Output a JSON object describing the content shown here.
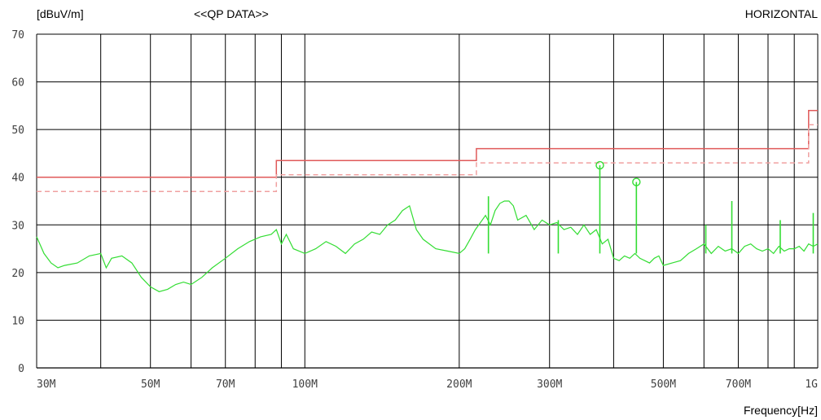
{
  "chart_data": {
    "type": "line",
    "title": "<<QP DATA>>",
    "ylabel": "[dBuV/m]",
    "xlabel": "Frequency[Hz]",
    "polarization": "HORIZONTAL",
    "xscale": "log",
    "xlim": [
      30,
      1000
    ],
    "ylim": [
      0,
      70
    ],
    "grid": true,
    "yticks": [
      0,
      10,
      20,
      30,
      40,
      50,
      60,
      70
    ],
    "xticks": [
      {
        "value": 30,
        "label": "30M"
      },
      {
        "value": 40,
        "label": ""
      },
      {
        "value": 50,
        "label": "50M"
      },
      {
        "value": 60,
        "label": ""
      },
      {
        "value": 70,
        "label": "70M"
      },
      {
        "value": 80,
        "label": ""
      },
      {
        "value": 90,
        "label": ""
      },
      {
        "value": 100,
        "label": "100M"
      },
      {
        "value": 200,
        "label": "200M"
      },
      {
        "value": 300,
        "label": "300M"
      },
      {
        "value": 400,
        "label": ""
      },
      {
        "value": 500,
        "label": "500M"
      },
      {
        "value": 600,
        "label": ""
      },
      {
        "value": 700,
        "label": "700M"
      },
      {
        "value": 800,
        "label": ""
      },
      {
        "value": 900,
        "label": ""
      },
      {
        "value": 1000,
        "label": "1G"
      }
    ],
    "colors": {
      "limit": "#e05a5a",
      "margin": "#f0a0a0",
      "measurement": "#33dd33",
      "grid": "#000000",
      "polarization": "#33dd33"
    },
    "series": [
      {
        "kind": "limit",
        "x": [
          30,
          88,
          88,
          216,
          216,
          960,
          960,
          1000
        ],
        "y": [
          40,
          40,
          43.5,
          43.5,
          46,
          46,
          54,
          54
        ]
      },
      {
        "kind": "margin",
        "x": [
          30,
          88,
          88,
          216,
          216,
          960,
          960,
          1000
        ],
        "y": [
          37,
          37,
          40.5,
          40.5,
          43,
          43,
          51,
          51
        ]
      },
      {
        "kind": "measurement",
        "x": [
          30,
          31,
          32,
          33,
          34,
          36,
          38,
          40,
          41,
          42,
          44,
          46,
          48,
          50,
          52,
          54,
          56,
          58,
          60,
          63,
          66,
          70,
          74,
          78,
          82,
          86,
          88,
          90,
          92,
          95,
          100,
          105,
          110,
          115,
          120,
          125,
          130,
          135,
          140,
          145,
          150,
          155,
          160,
          165,
          170,
          180,
          190,
          200,
          205,
          210,
          215,
          220,
          225,
          230,
          235,
          240,
          245,
          250,
          255,
          260,
          270,
          280,
          290,
          300,
          310,
          320,
          330,
          340,
          350,
          360,
          370,
          380,
          390,
          400,
          410,
          420,
          430,
          440,
          450,
          460,
          470,
          480,
          490,
          500,
          520,
          540,
          560,
          580,
          600,
          620,
          640,
          660,
          680,
          700,
          720,
          740,
          760,
          780,
          800,
          820,
          840,
          860,
          880,
          900,
          920,
          940,
          960,
          980,
          1000
        ],
        "y": [
          27.5,
          24,
          22,
          21,
          21.5,
          22,
          23.5,
          24,
          21,
          23,
          23.5,
          22,
          19,
          17,
          16,
          16.5,
          17.5,
          18,
          17.5,
          19,
          21,
          23,
          25,
          26.5,
          27.5,
          28,
          29,
          26,
          28,
          25,
          24,
          25,
          26.5,
          25.5,
          24,
          26,
          27,
          28.5,
          28,
          30,
          31,
          33,
          34,
          29,
          27,
          25,
          24.5,
          24,
          25,
          27,
          29,
          30.5,
          32,
          30,
          33,
          34.5,
          35,
          35,
          34,
          31,
          32,
          29,
          31,
          30,
          30.5,
          29,
          29.5,
          28,
          30,
          28,
          29,
          26,
          27,
          23,
          22.5,
          23.5,
          23,
          24,
          23,
          22.5,
          22,
          23,
          23.5,
          21.5,
          22,
          22.5,
          24,
          25,
          26,
          24,
          25.5,
          24.5,
          25,
          24,
          25.5,
          26,
          25,
          24.5,
          25,
          24,
          25.5,
          24.5,
          25,
          25,
          25.5,
          24.5,
          26,
          25.5,
          26
        ]
      }
    ],
    "spikes": [
      {
        "x": 376,
        "y": 42.5
      },
      {
        "x": 443,
        "y": 39
      },
      {
        "x": 312,
        "y": 31
      },
      {
        "x": 228,
        "y": 36
      },
      {
        "x": 605,
        "y": 30
      },
      {
        "x": 680,
        "y": 35
      },
      {
        "x": 845,
        "y": 31
      },
      {
        "x": 980,
        "y": 32.5
      }
    ],
    "peak_markers": [
      {
        "x": 376,
        "y": 42.5
      },
      {
        "x": 443,
        "y": 39
      }
    ]
  }
}
